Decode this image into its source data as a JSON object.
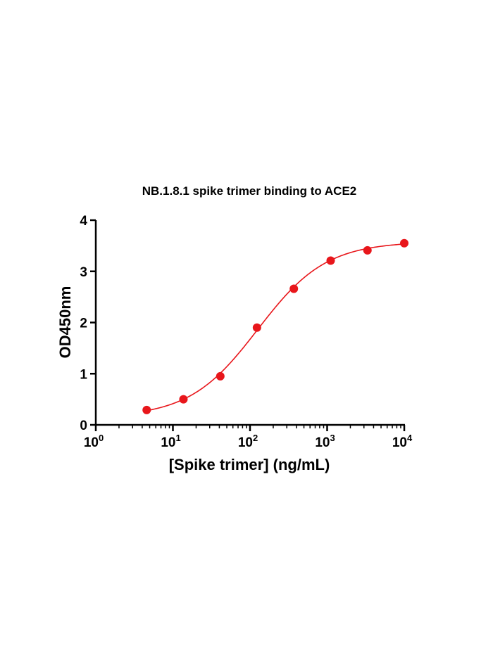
{
  "chart_data": {
    "type": "scatter",
    "title": "NB.1.8.1 spike trimer binding to ACE2",
    "xlabel": "[Spike trimer] (ng/mL)",
    "ylabel": "OD450nm",
    "x_scale": "log",
    "xlim": [
      1,
      10000
    ],
    "ylim": [
      0,
      4
    ],
    "x_ticks": [
      {
        "base": "10",
        "exp": "0"
      },
      {
        "base": "10",
        "exp": "1"
      },
      {
        "base": "10",
        "exp": "2"
      },
      {
        "base": "10",
        "exp": "3"
      },
      {
        "base": "10",
        "exp": "4"
      }
    ],
    "y_ticks": [
      "0",
      "1",
      "2",
      "3",
      "4"
    ],
    "grid": false,
    "series": [
      {
        "color": "#e8161b",
        "fit": "sigmoidal",
        "x": [
          4.57,
          13.7,
          41.2,
          123,
          370,
          1111,
          3333,
          10000
        ],
        "y": [
          0.29,
          0.5,
          0.95,
          1.9,
          2.66,
          3.21,
          3.41,
          3.55
        ]
      }
    ]
  }
}
